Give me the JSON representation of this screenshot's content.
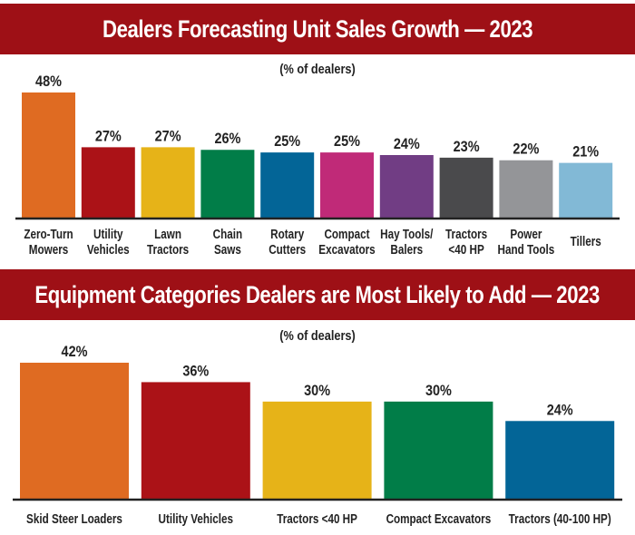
{
  "chart_data": [
    {
      "type": "bar",
      "title": "Dealers Forecasting Unit Sales Growth — 2023",
      "subtitle": "(% of dealers)",
      "categories": [
        [
          "Zero-Turn",
          "Mowers"
        ],
        [
          "Utility",
          "Vehicles"
        ],
        [
          "Lawn",
          "Tractors"
        ],
        [
          "Chain",
          "Saws"
        ],
        [
          "Rotary",
          "Cutters"
        ],
        [
          "Compact",
          "Excavators"
        ],
        [
          "Hay Tools/",
          "Balers"
        ],
        [
          "Tractors",
          "<40 HP"
        ],
        [
          "Power",
          "Hand Tools"
        ],
        [
          "Tillers"
        ]
      ],
      "values": [
        48,
        27,
        27,
        26,
        25,
        25,
        24,
        23,
        22,
        21
      ],
      "data_labels": [
        "48%",
        "27%",
        "27%",
        "26%",
        "25%",
        "25%",
        "24%",
        "23%",
        "22%",
        "21%"
      ],
      "colors": [
        "#df6b22",
        "#ab1217",
        "#e6b318",
        "#017d48",
        "#036597",
        "#c02a78",
        "#713d84",
        "#4a4a4c",
        "#949598",
        "#82b9d6"
      ],
      "xlabel": "",
      "ylabel": "",
      "ylim": [
        0,
        48
      ],
      "grid": false
    },
    {
      "type": "bar",
      "title": "Equipment Categories Dealers are Most Likely to Add — 2023",
      "subtitle": "(% of dealers)",
      "categories": [
        [
          "Skid Steer Loaders"
        ],
        [
          "Utility Vehicles"
        ],
        [
          "Tractors <40 HP"
        ],
        [
          "Compact Excavators"
        ],
        [
          "Tractors  (40-100 HP)"
        ]
      ],
      "values": [
        42,
        36,
        30,
        30,
        24
      ],
      "data_labels": [
        "42%",
        "36%",
        "30%",
        "30%",
        "24%"
      ],
      "colors": [
        "#df6b22",
        "#ab1217",
        "#e6b318",
        "#017d48",
        "#036597"
      ],
      "xlabel": "",
      "ylabel": "",
      "ylim": [
        0,
        42
      ],
      "grid": false
    }
  ]
}
